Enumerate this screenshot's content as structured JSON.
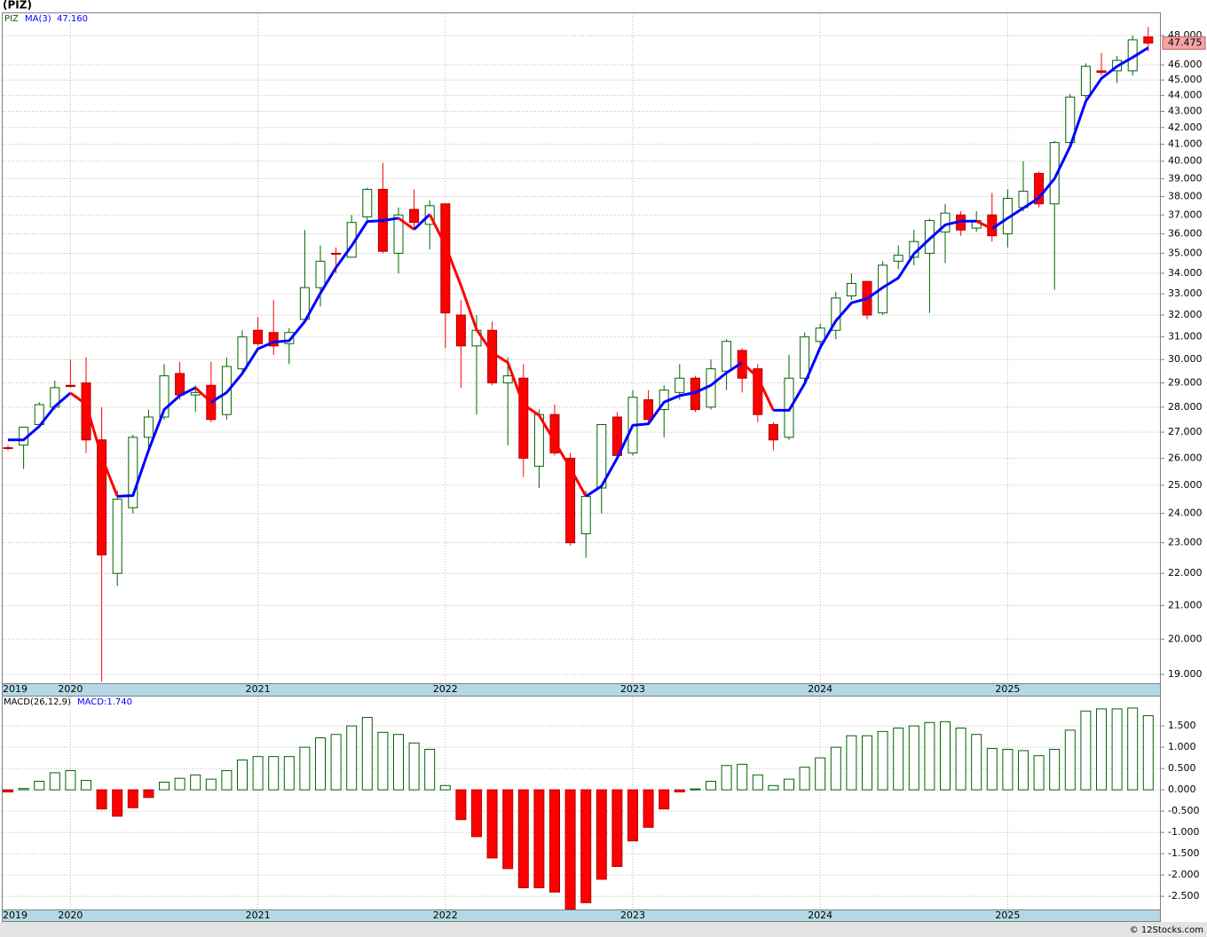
{
  "chart_data": [
    {
      "type": "candlestick",
      "title": "(PIZ)",
      "categories": [
        "2019",
        null,
        null,
        null,
        "2020",
        null,
        null,
        null,
        null,
        null,
        null,
        null,
        null,
        null,
        null,
        null,
        "2021",
        null,
        null,
        null,
        null,
        null,
        null,
        null,
        null,
        null,
        null,
        null,
        "2022",
        null,
        null,
        null,
        null,
        null,
        null,
        null,
        null,
        null,
        null,
        null,
        "2023",
        null,
        null,
        null,
        null,
        null,
        null,
        null,
        null,
        null,
        null,
        null,
        "2024",
        null,
        null,
        null,
        null,
        null,
        null,
        null,
        null,
        null,
        null,
        null,
        "2025",
        null,
        null,
        null,
        null,
        null,
        null,
        null,
        null,
        null
      ],
      "log_scale": true,
      "grid": true,
      "ylim": [
        18.76,
        49.57
      ],
      "yticks": [
        {
          "value": 19,
          "label": "19.000"
        },
        {
          "value": 20,
          "label": "20.000"
        },
        {
          "value": 21,
          "label": "21.000"
        },
        {
          "value": 22,
          "label": "22.000"
        },
        {
          "value": 23,
          "label": "23.000"
        },
        {
          "value": 24,
          "label": "24.000"
        },
        {
          "value": 25,
          "label": "25.000"
        },
        {
          "value": 26,
          "label": "26.000"
        },
        {
          "value": 27,
          "label": "27.000"
        },
        {
          "value": 28,
          "label": "28.000"
        },
        {
          "value": 29,
          "label": "29.000"
        },
        {
          "value": 30,
          "label": "30.000"
        },
        {
          "value": 31,
          "label": "31.000"
        },
        {
          "value": 32,
          "label": "32.000"
        },
        {
          "value": 33,
          "label": "33.000"
        },
        {
          "value": 34,
          "label": "34.000"
        },
        {
          "value": 35,
          "label": "35.000"
        },
        {
          "value": 36,
          "label": "36.000"
        },
        {
          "value": 37,
          "label": "37.000"
        },
        {
          "value": 38,
          "label": "38.000"
        },
        {
          "value": 39,
          "label": "39.000"
        },
        {
          "value": 40,
          "label": "40.000"
        },
        {
          "value": 41,
          "label": "41.000"
        },
        {
          "value": 42,
          "label": "42.000"
        },
        {
          "value": 43,
          "label": "43.000"
        },
        {
          "value": 44,
          "label": "44.000"
        },
        {
          "value": 45,
          "label": "45.000"
        },
        {
          "value": 46,
          "label": "46.000"
        },
        {
          "value": 48,
          "label": "48.000"
        }
      ],
      "series": [
        {
          "name": "PIZ",
          "color": "#006400",
          "down_color": "#ff0000",
          "last_label": "47.475",
          "last_label_color": "#f4a4a4",
          "open": [
            26.4,
            26.5,
            27.3,
            28.0,
            28.9,
            29.0,
            26.7,
            22.0,
            24.2,
            26.8,
            27.6,
            29.4,
            28.5,
            28.9,
            27.7,
            29.6,
            31.3,
            31.2,
            30.7,
            31.8,
            33.3,
            35.0,
            34.8,
            36.9,
            38.4,
            35.0,
            37.3,
            36.5,
            37.6,
            32.0,
            30.6,
            31.3,
            29.0,
            29.2,
            25.7,
            27.7,
            26.0,
            23.3,
            24.9,
            27.6,
            26.2,
            28.3,
            27.9,
            28.6,
            29.2,
            28.0,
            29.5,
            30.4,
            29.6,
            27.3,
            26.8,
            29.2,
            30.8,
            31.3,
            32.9,
            33.6,
            32.1,
            34.6,
            34.8,
            35.0,
            36.1,
            37.0,
            36.3,
            37.0,
            36.0,
            37.4,
            39.3,
            37.6,
            41.1,
            44.0,
            45.6,
            45.6,
            45.6,
            47.9
          ],
          "high": [
            26.5,
            27.2,
            28.2,
            29.1,
            30.0,
            30.1,
            28.0,
            24.8,
            26.9,
            27.9,
            29.8,
            29.9,
            28.9,
            29.9,
            30.1,
            31.3,
            31.9,
            32.7,
            31.4,
            36.2,
            35.4,
            35.3,
            37.0,
            38.5,
            39.9,
            37.4,
            38.4,
            37.8,
            37.6,
            32.7,
            32.0,
            31.7,
            30.1,
            29.8,
            27.9,
            28.1,
            26.2,
            24.8,
            27.3,
            27.8,
            28.7,
            28.7,
            28.9,
            29.8,
            29.3,
            30.0,
            30.9,
            30.5,
            29.8,
            27.4,
            30.2,
            31.2,
            31.6,
            33.1,
            34.0,
            33.6,
            34.6,
            35.4,
            36.2,
            36.8,
            37.6,
            37.2,
            37.2,
            38.2,
            38.4,
            40.0,
            39.4,
            41.2,
            44.1,
            46.1,
            46.8,
            46.6,
            48.0,
            48.6
          ],
          "low": [
            26.3,
            25.6,
            27.2,
            27.9,
            28.8,
            26.2,
            18.8,
            21.6,
            24.0,
            26.3,
            27.5,
            28.3,
            27.8,
            27.4,
            27.5,
            29.5,
            30.6,
            30.2,
            29.8,
            31.8,
            32.4,
            34.0,
            34.8,
            36.6,
            35.0,
            34.0,
            36.3,
            35.2,
            30.5,
            28.8,
            27.7,
            28.9,
            26.5,
            25.3,
            24.9,
            26.1,
            22.9,
            22.5,
            24.0,
            26.0,
            26.1,
            27.3,
            26.8,
            28.3,
            27.8,
            27.9,
            28.7,
            28.6,
            27.4,
            26.3,
            26.7,
            28.9,
            30.6,
            30.9,
            32.7,
            31.8,
            32.0,
            34.2,
            34.4,
            32.1,
            34.5,
            35.9,
            36.1,
            35.6,
            35.3,
            37.2,
            37.4,
            33.2,
            41.0,
            43.8,
            45.3,
            44.8,
            45.3,
            46.9
          ],
          "close": [
            26.4,
            27.2,
            28.1,
            28.8,
            28.85,
            26.7,
            22.6,
            24.5,
            26.8,
            27.6,
            29.3,
            28.5,
            28.6,
            27.5,
            29.7,
            31.0,
            30.7,
            30.6,
            31.2,
            33.3,
            34.6,
            34.95,
            36.6,
            38.4,
            35.1,
            37.0,
            36.6,
            37.5,
            32.1,
            30.6,
            31.3,
            29.0,
            29.3,
            26.0,
            27.7,
            26.2,
            23.0,
            24.6,
            27.3,
            26.1,
            28.4,
            27.5,
            28.7,
            29.2,
            27.9,
            29.6,
            30.8,
            29.2,
            27.7,
            26.7,
            29.2,
            31.0,
            31.4,
            32.8,
            33.5,
            32.0,
            34.4,
            34.9,
            35.6,
            36.7,
            37.1,
            36.2,
            36.7,
            35.9,
            37.9,
            38.3,
            37.6,
            41.1,
            43.9,
            45.9,
            45.5,
            46.3,
            47.7,
            47.475
          ]
        },
        {
          "name": "MA(3)",
          "color": "#0000ff",
          "down_color": "#ff0000",
          "readout": "47.160",
          "values": [
            26.7,
            26.7,
            27.23,
            28.03,
            28.58,
            28.12,
            26.05,
            24.6,
            24.63,
            26.3,
            27.9,
            28.47,
            28.8,
            28.2,
            28.6,
            29.4,
            30.47,
            30.77,
            30.83,
            31.7,
            33.03,
            34.28,
            35.38,
            36.65,
            36.7,
            36.83,
            36.23,
            37.03,
            35.4,
            33.4,
            31.33,
            30.3,
            29.87,
            28.1,
            27.67,
            26.63,
            25.63,
            24.6,
            24.97,
            26.0,
            27.27,
            27.33,
            28.2,
            28.47,
            28.6,
            28.9,
            29.43,
            29.87,
            29.23,
            27.87,
            27.87,
            28.97,
            30.53,
            31.73,
            32.57,
            32.77,
            33.3,
            33.77,
            34.97,
            35.73,
            36.47,
            36.67,
            36.67,
            36.27,
            36.83,
            37.37,
            37.93,
            39.0,
            40.87,
            43.63,
            45.1,
            45.9,
            46.5,
            47.16
          ]
        }
      ]
    },
    {
      "type": "bar",
      "title": "MACD(26,12,9)",
      "grid": true,
      "ylim": [
        -2.81,
        2.19
      ],
      "yticks": [
        {
          "value": 1.5,
          "label": "1.500"
        },
        {
          "value": 1,
          "label": "1.000"
        },
        {
          "value": 0.5,
          "label": "0.500"
        },
        {
          "value": 0,
          "label": "0.000"
        },
        {
          "value": -0.5,
          "label": "-0.500"
        },
        {
          "value": -1,
          "label": "-1.000"
        },
        {
          "value": -1.5,
          "label": "-1.500"
        },
        {
          "value": -2,
          "label": "-2.000"
        },
        {
          "value": -2.5,
          "label": "-2.500"
        }
      ],
      "series": [
        {
          "readout": "MACD:1.740",
          "color": "#006400",
          "down_color": "#ff0000",
          "values": [
            -0.05,
            0.03,
            0.2,
            0.4,
            0.45,
            0.22,
            -0.45,
            -0.62,
            -0.42,
            -0.18,
            0.18,
            0.27,
            0.35,
            0.25,
            0.45,
            0.7,
            0.78,
            0.78,
            0.78,
            1.0,
            1.22,
            1.3,
            1.5,
            1.7,
            1.35,
            1.3,
            1.1,
            0.95,
            0.1,
            -0.7,
            -1.1,
            -1.6,
            -1.85,
            -2.3,
            -2.3,
            -2.4,
            -2.8,
            -2.65,
            -2.1,
            -1.8,
            -1.2,
            -0.88,
            -0.45,
            -0.05,
            0.02,
            0.2,
            0.57,
            0.6,
            0.35,
            0.1,
            0.25,
            0.53,
            0.75,
            1.0,
            1.27,
            1.27,
            1.37,
            1.45,
            1.5,
            1.58,
            1.6,
            1.45,
            1.3,
            0.97,
            0.95,
            0.92,
            0.8,
            0.95,
            1.4,
            1.85,
            1.9,
            1.9,
            1.92,
            1.74
          ]
        }
      ]
    }
  ],
  "footer": "© 12Stocks.com"
}
